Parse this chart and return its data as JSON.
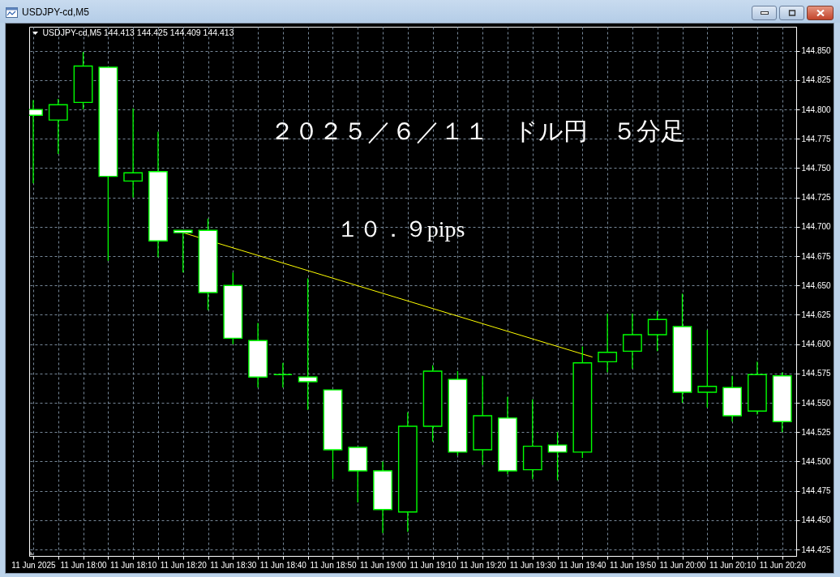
{
  "chart_data": {
    "type": "candlestick",
    "title": "２０２５／６／１１　ドル円　５分足",
    "subtitle": "USDJPY-cd,M5 144.413 144.425 144.409 144.413",
    "annotations": [
      "USDJPY-cd,M5",
      "１０．９pips"
    ],
    "x": [
      "2025-06-11T17:50",
      "2025-06-11T17:55",
      "2025-06-11T18:00",
      "2025-06-11T18:05",
      "2025-06-11T18:10",
      "2025-06-11T18:15",
      "2025-06-11T18:20",
      "2025-06-11T18:25",
      "2025-06-11T18:30",
      "2025-06-11T18:35",
      "2025-06-11T18:40",
      "2025-06-11T18:45",
      "2025-06-11T18:50",
      "2025-06-11T18:55",
      "2025-06-11T19:00",
      "2025-06-11T19:05",
      "2025-06-11T19:10",
      "2025-06-11T19:15",
      "2025-06-11T19:20",
      "2025-06-11T19:25",
      "2025-06-11T19:30",
      "2025-06-11T19:35",
      "2025-06-11T19:40",
      "2025-06-11T19:45",
      "2025-06-11T19:50",
      "2025-06-11T19:55",
      "2025-06-11T20:00",
      "2025-06-11T20:05",
      "2025-06-11T20:10",
      "2025-06-11T20:15",
      "2025-06-11T20:20"
    ],
    "ohlc": [
      [
        144.8,
        144.808,
        144.737,
        144.795
      ],
      [
        144.791,
        144.809,
        144.762,
        144.804
      ],
      [
        144.806,
        144.849,
        144.8,
        144.837
      ],
      [
        144.836,
        144.836,
        144.671,
        144.743
      ],
      [
        144.739,
        144.801,
        144.725,
        144.746
      ],
      [
        144.747,
        144.781,
        144.674,
        144.688
      ],
      [
        144.697,
        144.697,
        144.661,
        144.695
      ],
      [
        144.697,
        144.707,
        144.629,
        144.644
      ],
      [
        144.65,
        144.661,
        144.6,
        144.605
      ],
      [
        144.603,
        144.618,
        144.563,
        144.572
      ],
      [
        144.574,
        144.584,
        144.563,
        144.574
      ],
      [
        144.572,
        144.656,
        144.544,
        144.568
      ],
      [
        144.561,
        144.561,
        144.485,
        144.51
      ],
      [
        144.512,
        144.512,
        144.465,
        144.492
      ],
      [
        144.492,
        144.5,
        144.439,
        144.459
      ],
      [
        144.457,
        144.542,
        144.44,
        144.53
      ],
      [
        144.53,
        144.582,
        144.517,
        144.577
      ],
      [
        144.57,
        144.577,
        144.505,
        144.508
      ],
      [
        144.51,
        144.573,
        144.497,
        144.539
      ],
      [
        144.537,
        144.555,
        144.489,
        144.492
      ],
      [
        144.493,
        144.553,
        144.485,
        144.513
      ],
      [
        144.514,
        144.525,
        144.484,
        144.508
      ],
      [
        144.508,
        144.598,
        144.503,
        144.584
      ],
      [
        144.585,
        144.626,
        144.576,
        144.593
      ],
      [
        144.594,
        144.626,
        144.579,
        144.608
      ],
      [
        144.608,
        144.628,
        144.594,
        144.621
      ],
      [
        144.615,
        144.643,
        144.55,
        144.559
      ],
      [
        144.559,
        144.612,
        144.546,
        144.564
      ],
      [
        144.563,
        144.573,
        144.534,
        144.539
      ],
      [
        144.543,
        144.585,
        144.54,
        144.574
      ],
      [
        144.573,
        144.576,
        144.525,
        144.534
      ]
    ],
    "color": "#00ff00",
    "colors": [
      "#ffffff",
      "#000000",
      "#000000",
      "#ffffff",
      "#000000",
      "#ffffff",
      "#ffffff",
      "#ffffff",
      "#ffffff",
      "#ffffff",
      "#00ff00",
      "#ffffff",
      "#ffffff",
      "#ffffff",
      "#ffffff",
      "#000000",
      "#000000",
      "#ffffff",
      "#000000",
      "#ffffff",
      "#000000",
      "#ffffff",
      "#000000",
      "#000000",
      "#000000",
      "#000000",
      "#ffffff",
      "#000000",
      "#ffffff",
      "#000000",
      "#ffffff"
    ],
    "series": [
      {
        "type": "line",
        "x": [
          "2025-06-11T18:20",
          "2025-06-11T19:42"
        ],
        "values": [
          144.695,
          144.589
        ],
        "color": "#ffff00"
      }
    ],
    "xlim": [
      "2025-06-11T17:50",
      "2025-06-11T20:22"
    ],
    "ylim": [
      144.4195,
      144.8705
    ],
    "xticks": [
      {
        "value": "2025-06-11T17:50",
        "label": "11 Jun 2025"
      },
      {
        "value": "2025-06-11T17:55",
        "label": null
      },
      {
        "value": "2025-06-11T18:00",
        "label": "11 Jun 18:00"
      },
      {
        "value": "2025-06-11T18:05",
        "label": null
      },
      {
        "value": "2025-06-11T18:10",
        "label": "11 Jun 18:10"
      },
      {
        "value": "2025-06-11T18:15",
        "label": null
      },
      {
        "value": "2025-06-11T18:20",
        "label": "11 Jun 18:20"
      },
      {
        "value": "2025-06-11T18:25",
        "label": null
      },
      {
        "value": "2025-06-11T18:30",
        "label": "11 Jun 18:30"
      },
      {
        "value": "2025-06-11T18:35",
        "label": null
      },
      {
        "value": "2025-06-11T18:40",
        "label": "11 Jun 18:40"
      },
      {
        "value": "2025-06-11T18:45",
        "label": null
      },
      {
        "value": "2025-06-11T18:50",
        "label": "11 Jun 18:50"
      },
      {
        "value": "2025-06-11T18:55",
        "label": null
      },
      {
        "value": "2025-06-11T19:00",
        "label": "11 Jun 19:00"
      },
      {
        "value": "2025-06-11T19:05",
        "label": null
      },
      {
        "value": "2025-06-11T19:10",
        "label": "11 Jun 19:10"
      },
      {
        "value": "2025-06-11T19:15",
        "label": null
      },
      {
        "value": "2025-06-11T19:20",
        "label": "11 Jun 19:20"
      },
      {
        "value": "2025-06-11T19:25",
        "label": null
      },
      {
        "value": "2025-06-11T19:30",
        "label": "11 Jun 19:30"
      },
      {
        "value": "2025-06-11T19:35",
        "label": null
      },
      {
        "value": "2025-06-11T19:40",
        "label": "11 Jun 19:40"
      },
      {
        "value": "2025-06-11T19:45",
        "label": null
      },
      {
        "value": "2025-06-11T19:50",
        "label": "11 Jun 19:50"
      },
      {
        "value": "2025-06-11T19:55",
        "label": null
      },
      {
        "value": "2025-06-11T20:00",
        "label": "11 Jun 20:00"
      },
      {
        "value": "2025-06-11T20:05",
        "label": null
      },
      {
        "value": "2025-06-11T20:10",
        "label": "11 Jun 20:10"
      },
      {
        "value": "2025-06-11T20:15",
        "label": null
      },
      {
        "value": "2025-06-11T20:20",
        "label": "11 Jun 20:20"
      }
    ],
    "yticks": [
      144.425,
      {
        "value": 144.45,
        "label": "144.450"
      },
      144.475,
      {
        "value": 144.5,
        "label": "144.500"
      },
      144.525,
      {
        "value": 144.55,
        "label": "144.550"
      },
      144.575,
      {
        "value": 144.6,
        "label": "144.600"
      },
      144.625,
      {
        "value": 144.65,
        "label": "144.650"
      },
      144.675,
      {
        "value": 144.7,
        "label": "144.700"
      },
      144.725,
      {
        "value": 144.75,
        "label": "144.750"
      },
      144.775,
      {
        "value": 144.8,
        "label": "144.800"
      },
      144.825,
      {
        "value": 144.85,
        "label": "144.850"
      }
    ],
    "grid": true
  }
}
